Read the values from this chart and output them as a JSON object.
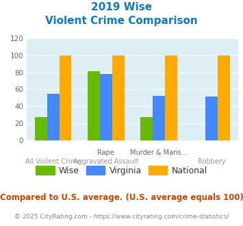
{
  "title_line1": "2019 Wise",
  "title_line2": "Violent Crime Comparison",
  "wise": [
    27,
    81,
    27,
    0
  ],
  "virginia": [
    55,
    78,
    52,
    51
  ],
  "national": [
    100,
    100,
    100,
    100
  ],
  "wise_color": "#66bb00",
  "virginia_color": "#4488ff",
  "national_color": "#ffaa00",
  "ylim": [
    0,
    120
  ],
  "yticks": [
    0,
    20,
    40,
    60,
    80,
    100,
    120
  ],
  "bg_color": "#ddeef5",
  "title_color": "#1177cc",
  "top_labels": [
    "",
    "Rape",
    "Murder & Mans...",
    ""
  ],
  "bottom_labels": [
    "All Violent Crime",
    "Aggravated Assault",
    "",
    "Robbery"
  ],
  "footer_text": "Compared to U.S. average. (U.S. average equals 100)",
  "footer_color": "#cc4400",
  "credit_text": "© 2025 CityRating.com - https://www.cityrating.com/crime-statistics/",
  "credit_color": "#888888",
  "bar_width": 0.23
}
